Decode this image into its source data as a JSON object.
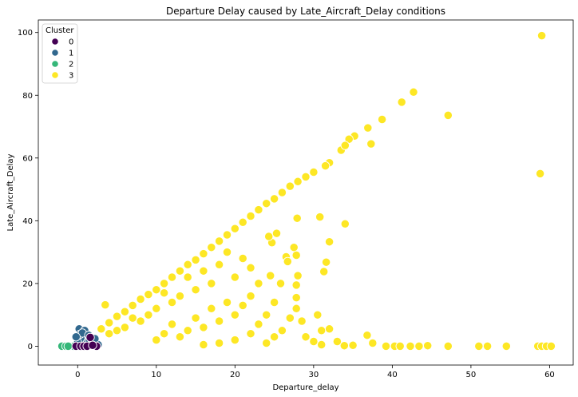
{
  "chart_data": {
    "type": "scatter",
    "title": "Departure Delay caused by Late_Aircraft_Delay conditions",
    "xlabel": "Departure_delay",
    "ylabel": "Late_Aircraft_Delay",
    "xlim": [
      -5,
      63
    ],
    "ylim": [
      -6,
      104
    ],
    "xticks": [
      0,
      10,
      20,
      30,
      40,
      50,
      60
    ],
    "yticks": [
      0,
      20,
      40,
      60,
      80,
      100
    ],
    "grid": false,
    "legend": {
      "title": "Cluster",
      "placement": "top-left"
    },
    "series": [
      {
        "name": "0",
        "color": "#440154",
        "points": [
          [
            -0.2,
            0
          ],
          [
            0.4,
            0
          ],
          [
            0.8,
            0
          ],
          [
            1.2,
            0
          ],
          [
            1.6,
            2.8
          ],
          [
            2.4,
            0
          ],
          [
            1.9,
            0.3
          ]
        ]
      },
      {
        "name": "1",
        "color": "#31688e",
        "points": [
          [
            0,
            0
          ],
          [
            0.2,
            5.5
          ],
          [
            0.6,
            1.5
          ],
          [
            0.8,
            3
          ],
          [
            1,
            4.5
          ],
          [
            0.4,
            2.5
          ],
          [
            1.2,
            1
          ],
          [
            1.5,
            2
          ],
          [
            0.9,
            5
          ],
          [
            0.3,
            3.8
          ],
          [
            2,
            1.8
          ],
          [
            2.6,
            0.5
          ],
          [
            0.6,
            4.2
          ],
          [
            1.4,
            3.5
          ],
          [
            1.8,
            0.8
          ],
          [
            0,
            1.2
          ],
          [
            -0.2,
            3
          ],
          [
            2.2,
            2.4
          ]
        ]
      },
      {
        "name": "2",
        "color": "#35b779",
        "points": [
          [
            -2,
            0
          ],
          [
            -1.5,
            0
          ],
          [
            -1,
            0
          ],
          [
            -0.5,
            0
          ],
          [
            0,
            0
          ],
          [
            -1.2,
            0
          ]
        ]
      },
      {
        "name": "3",
        "color": "#fde725",
        "points": [
          [
            59,
            99
          ],
          [
            58.8,
            55
          ],
          [
            42.7,
            81
          ],
          [
            41.2,
            77.8
          ],
          [
            47.1,
            73.6
          ],
          [
            38.7,
            72.3
          ],
          [
            36.9,
            69.6
          ],
          [
            37.3,
            64.5
          ],
          [
            35.2,
            67
          ],
          [
            34.5,
            66
          ],
          [
            33.5,
            62.5
          ],
          [
            34,
            64
          ],
          [
            32,
            58.5
          ],
          [
            31.5,
            57.5
          ],
          [
            30,
            55.5
          ],
          [
            29,
            54
          ],
          [
            28,
            52.5
          ],
          [
            27,
            51
          ],
          [
            26,
            49
          ],
          [
            25,
            47
          ],
          [
            24,
            45.5
          ],
          [
            23,
            43.5
          ],
          [
            22,
            41.5
          ],
          [
            21,
            39.5
          ],
          [
            20,
            37.5
          ],
          [
            19,
            35.5
          ],
          [
            18,
            33.5
          ],
          [
            17,
            31.5
          ],
          [
            16,
            29.5
          ],
          [
            15,
            27.5
          ],
          [
            14,
            26
          ],
          [
            13,
            24
          ],
          [
            12,
            22
          ],
          [
            11,
            20
          ],
          [
            10,
            18
          ],
          [
            9,
            16.5
          ],
          [
            8,
            15
          ],
          [
            7,
            13
          ],
          [
            6,
            11
          ],
          [
            5,
            9.5
          ],
          [
            4,
            7.5
          ],
          [
            3,
            5.5
          ],
          [
            3.5,
            13.2
          ],
          [
            30.8,
            41.2
          ],
          [
            34,
            39
          ],
          [
            27.9,
            40.8
          ],
          [
            32,
            33.3
          ],
          [
            31.6,
            26.8
          ],
          [
            31.3,
            23.8
          ],
          [
            27.5,
            31.5
          ],
          [
            27.8,
            29
          ],
          [
            27.8,
            19.5
          ],
          [
            27.8,
            15.5
          ],
          [
            27.8,
            12
          ],
          [
            28.5,
            8
          ],
          [
            30.5,
            10
          ],
          [
            31,
            5
          ],
          [
            32,
            5.5
          ],
          [
            24.5,
            22.5
          ],
          [
            24.7,
            33
          ],
          [
            24.3,
            35
          ],
          [
            25.3,
            36
          ],
          [
            26.5,
            28.5
          ],
          [
            25.8,
            20
          ],
          [
            26.7,
            27
          ],
          [
            36.8,
            3.5
          ],
          [
            37.5,
            1
          ],
          [
            35,
            0.3
          ],
          [
            33.9,
            0.2
          ],
          [
            44.5,
            0.2
          ],
          [
            40.3,
            0
          ],
          [
            39.2,
            0
          ],
          [
            41,
            0
          ],
          [
            42.3,
            0
          ],
          [
            43.4,
            0
          ],
          [
            47.1,
            0
          ],
          [
            51,
            0
          ],
          [
            52.1,
            0
          ],
          [
            54.5,
            0
          ],
          [
            58.5,
            0
          ],
          [
            59,
            0
          ],
          [
            59.6,
            0
          ],
          [
            60.2,
            0
          ],
          [
            22,
            25
          ],
          [
            21,
            28
          ],
          [
            20,
            22
          ],
          [
            19,
            30
          ],
          [
            18,
            26
          ],
          [
            17,
            20
          ],
          [
            16,
            24
          ],
          [
            15,
            18
          ],
          [
            14,
            22
          ],
          [
            13,
            16
          ],
          [
            12,
            14
          ],
          [
            11,
            17
          ],
          [
            10,
            12
          ],
          [
            9,
            10
          ],
          [
            8,
            8
          ],
          [
            7,
            9
          ],
          [
            6,
            6
          ],
          [
            5,
            5
          ],
          [
            4,
            4
          ],
          [
            23,
            20
          ],
          [
            22,
            16
          ],
          [
            21,
            13
          ],
          [
            20,
            10
          ],
          [
            19,
            14
          ],
          [
            18,
            8
          ],
          [
            17,
            12
          ],
          [
            16,
            6
          ],
          [
            15,
            9
          ],
          [
            14,
            5
          ],
          [
            13,
            3
          ],
          [
            12,
            7
          ],
          [
            11,
            4
          ],
          [
            10,
            2
          ],
          [
            25,
            14
          ],
          [
            24,
            10
          ],
          [
            23,
            7
          ],
          [
            26,
            5
          ],
          [
            25,
            3
          ],
          [
            24,
            1
          ],
          [
            22,
            4
          ],
          [
            20,
            2
          ],
          [
            18,
            1
          ],
          [
            16,
            0.5
          ],
          [
            27,
            9
          ],
          [
            29,
            3
          ],
          [
            30,
            1.5
          ],
          [
            31,
            0.5
          ],
          [
            33,
            1.5
          ],
          [
            28,
            22.5
          ]
        ]
      }
    ]
  }
}
